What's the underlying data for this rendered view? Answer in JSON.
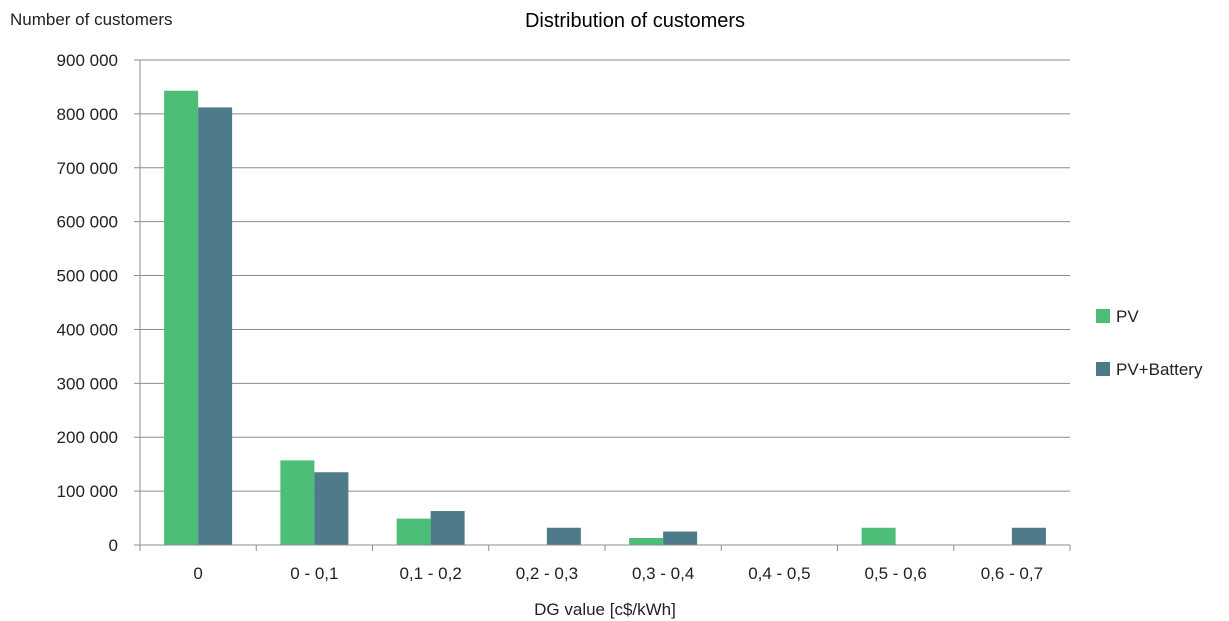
{
  "chart_data": {
    "type": "bar",
    "title": "Distribution of customers",
    "ylabel": "Number of customers",
    "xlabel": "DG value [c$/kWh]",
    "categories": [
      "0",
      "0 - 0,1",
      "0,1 - 0,2",
      "0,2 - 0,3",
      "0,3 - 0,4",
      "0,4 - 0,5",
      "0,5 - 0,6",
      "0,6 - 0,7"
    ],
    "series": [
      {
        "name": "PV",
        "color": "#4DBE77",
        "values": [
          843000,
          157000,
          49000,
          0,
          13000,
          0,
          32000,
          0
        ]
      },
      {
        "name": "PV+Battery",
        "color": "#4F7A8A",
        "values": [
          812000,
          135000,
          63000,
          32000,
          25000,
          0,
          0,
          32000
        ]
      }
    ],
    "ylim": [
      0,
      900000
    ],
    "yticks": [
      0,
      100000,
      200000,
      300000,
      400000,
      500000,
      600000,
      700000,
      800000,
      900000
    ],
    "ytick_labels": [
      "0",
      "100 000",
      "200 000",
      "300 000",
      "400 000",
      "500 000",
      "600 000",
      "700 000",
      "800 000",
      "900 000"
    ],
    "grid": true,
    "legend_position": "right"
  }
}
